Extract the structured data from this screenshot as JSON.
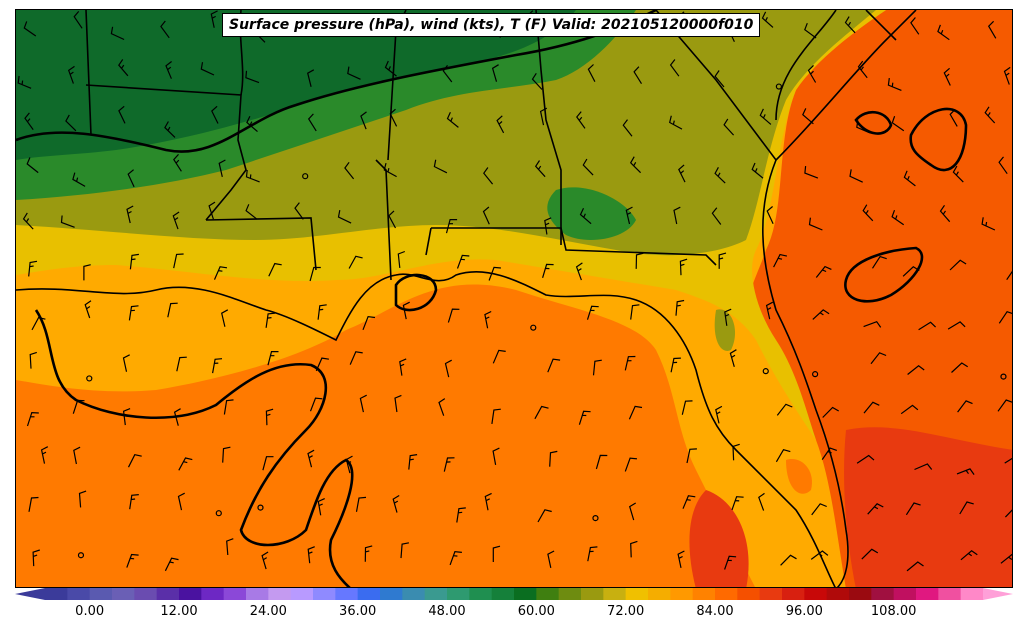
{
  "title": "Surface pressure (hPa), wind (kts), T (F) Valid: 202105120000f010",
  "colorbar": {
    "ticks": [
      "0.00",
      "12.00",
      "24.00",
      "36.00",
      "48.00",
      "60.00",
      "72.00",
      "84.00",
      "96.00",
      "108.00"
    ],
    "range": [
      -6,
      120
    ],
    "step": 3,
    "colors": [
      "#3b3b9a",
      "#4a4aa8",
      "#5a5ab0",
      "#6a5fb5",
      "#6a4cb0",
      "#5a2fa8",
      "#4a12a0",
      "#6d28c4",
      "#8b48d8",
      "#a87ae6",
      "#c49af0",
      "#b89aff",
      "#8f8aff",
      "#6678ff",
      "#3a6cf0",
      "#2f7ad0",
      "#3a8cb0",
      "#3a9a90",
      "#2e9a70",
      "#1f8f50",
      "#15803a",
      "#0a6e20",
      "#3f7f10",
      "#6e8c10",
      "#9a9a10",
      "#c8b010",
      "#f0c000",
      "#f5ad00",
      "#ff9900",
      "#ff8200",
      "#ff6a00",
      "#f55000",
      "#e83a10",
      "#d82010",
      "#c80808",
      "#b00a0a",
      "#9a0a10",
      "#a01040",
      "#c01060",
      "#e01880",
      "#f050a0",
      "#ff88c8"
    ]
  },
  "map": {
    "temperature_bands_F": {
      "north_dark_green": "#0f6a2a",
      "mid_green": "#2a8a2a",
      "olive": "#9a9a10",
      "gold": "#e8c000",
      "orange_light": "#ffaa00",
      "orange": "#ff7a00",
      "orange_red": "#f55a00",
      "red": "#e83a10"
    },
    "pressure_contour_color": "#000000",
    "boundary_color": "#000000"
  }
}
